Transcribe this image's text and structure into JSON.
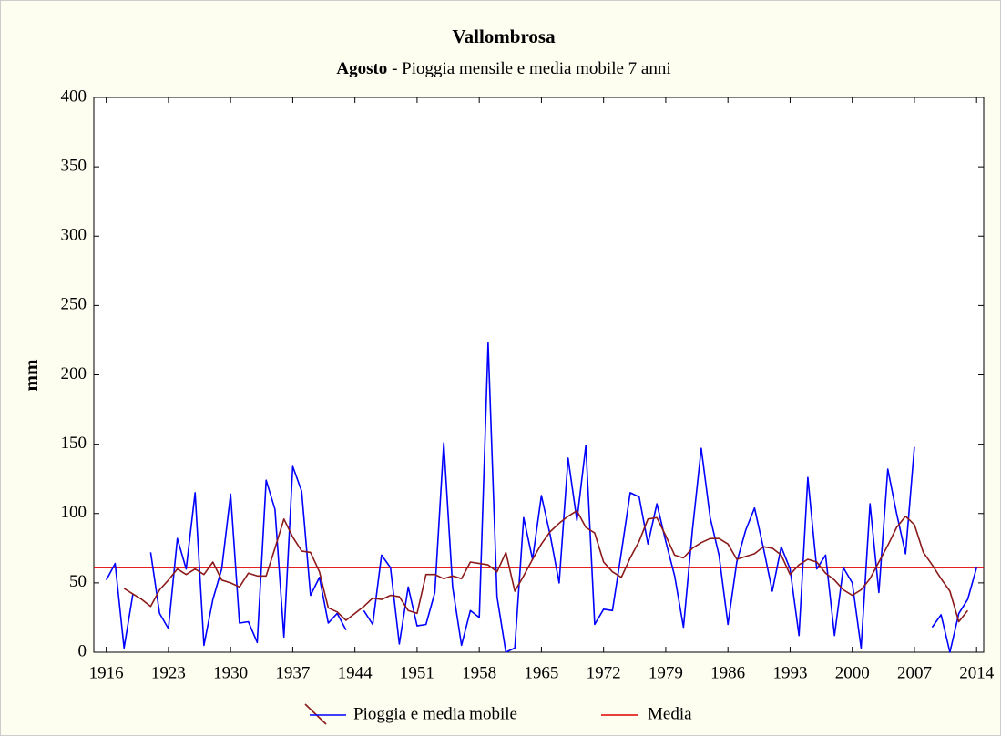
{
  "chart_data": {
    "type": "line",
    "title": "Vallombrosa",
    "subtitle_bold": "Agosto",
    "subtitle": " - Pioggia mensile e media mobile 7 anni",
    "y_label": "mm",
    "x": [
      1916,
      1917,
      1918,
      1919,
      1920,
      1921,
      1922,
      1923,
      1924,
      1925,
      1926,
      1927,
      1928,
      1929,
      1930,
      1931,
      1932,
      1933,
      1934,
      1935,
      1936,
      1937,
      1938,
      1939,
      1940,
      1941,
      1942,
      1943,
      1944,
      1945,
      1946,
      1947,
      1948,
      1949,
      1950,
      1951,
      1952,
      1953,
      1954,
      1955,
      1956,
      1957,
      1958,
      1959,
      1960,
      1961,
      1962,
      1963,
      1964,
      1965,
      1966,
      1967,
      1968,
      1969,
      1970,
      1971,
      1972,
      1973,
      1974,
      1975,
      1976,
      1977,
      1978,
      1979,
      1980,
      1981,
      1982,
      1983,
      1984,
      1985,
      1986,
      1987,
      1988,
      1989,
      1990,
      1991,
      1992,
      1993,
      1994,
      1995,
      1996,
      1997,
      1998,
      1999,
      2000,
      2001,
      2002,
      2003,
      2004,
      2005,
      2006,
      2007,
      2008,
      2009,
      2010,
      2011,
      2012,
      2013,
      2014
    ],
    "series": [
      {
        "name": "Pioggia e media mobile",
        "color": "#0000ff",
        "ma_color": "#8b1a1a",
        "values": [
          52,
          64,
          3,
          42,
          null,
          72,
          28,
          17,
          82,
          60,
          115,
          5,
          38,
          60,
          114,
          21,
          22,
          7,
          124,
          103,
          11,
          134,
          116,
          41,
          54,
          21,
          28,
          16,
          null,
          30,
          20,
          70,
          61,
          6,
          47,
          19,
          20,
          43,
          151,
          47,
          5,
          30,
          25,
          223,
          40,
          0,
          3,
          97,
          67,
          113,
          84,
          50,
          140,
          95,
          149,
          20,
          31,
          30,
          72,
          115,
          112,
          78,
          107,
          80,
          55,
          18,
          88,
          147,
          97,
          70,
          20,
          65,
          88,
          104,
          75,
          44,
          76,
          60,
          12,
          126,
          60,
          70,
          12,
          61,
          50,
          3,
          107,
          43,
          132,
          100,
          71,
          148,
          null,
          18,
          27,
          0,
          28,
          38,
          61
        ],
        "moving_average": [
          null,
          null,
          46,
          42,
          38,
          33,
          45,
          52,
          60,
          56,
          60,
          56,
          65,
          52,
          50,
          47,
          57,
          55,
          55,
          75,
          96,
          83,
          73,
          72,
          58,
          32,
          29,
          23,
          28,
          33,
          39,
          38,
          41,
          40,
          30,
          28,
          56,
          56,
          53,
          55,
          53,
          65,
          64,
          63,
          58,
          72,
          44,
          55,
          67,
          78,
          87,
          93,
          98,
          102,
          90,
          86,
          65,
          58,
          54,
          68,
          80,
          96,
          97,
          84,
          70,
          68,
          75,
          79,
          82,
          82,
          78,
          67,
          69,
          71,
          76,
          75,
          70,
          56,
          63,
          67,
          65,
          57,
          52,
          45,
          41,
          45,
          53,
          65,
          77,
          90,
          98,
          92,
          72,
          63,
          53,
          44,
          22,
          30,
          null
        ]
      },
      {
        "name": "Media",
        "color": "#e00000",
        "value": 61
      }
    ],
    "xlim": [
      1914.6,
      2014.8
    ],
    "xticks": [
      1916,
      1923,
      1930,
      1937,
      1944,
      1951,
      1958,
      1965,
      1972,
      1979,
      1986,
      1993,
      2000,
      2007,
      2014
    ],
    "ylim": [
      0,
      400
    ],
    "yticks": [
      0,
      50,
      100,
      150,
      200,
      250,
      300,
      350,
      400
    ],
    "grid": false
  }
}
